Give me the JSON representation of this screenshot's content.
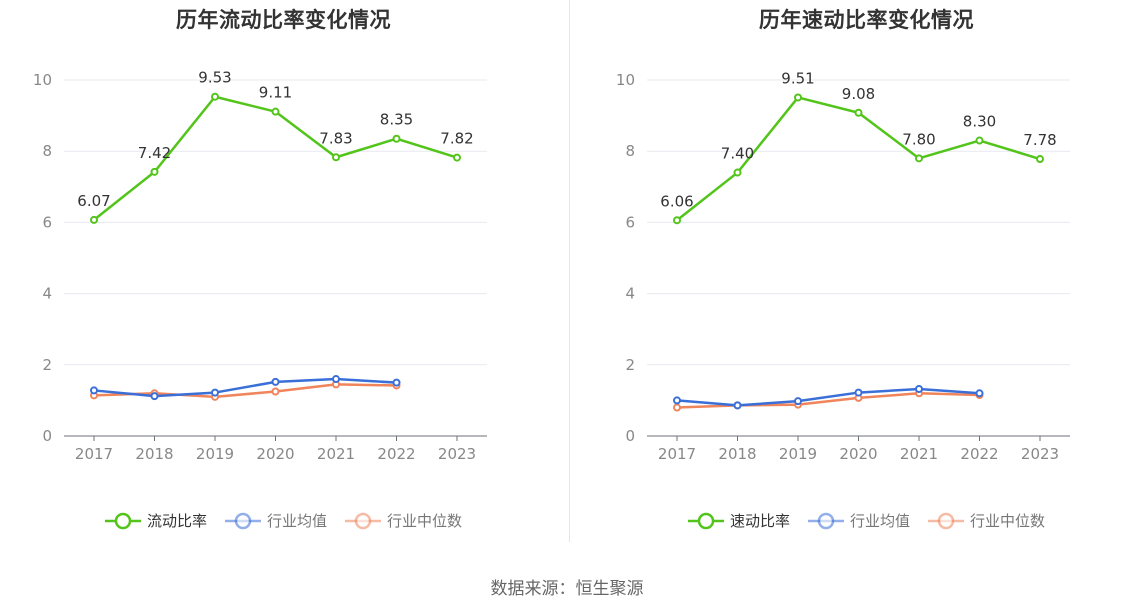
{
  "source": "数据来源：恒生聚源",
  "chart_data": [
    {
      "type": "line",
      "title": "历年流动比率变化情况",
      "categories": [
        "2017",
        "2018",
        "2019",
        "2020",
        "2021",
        "2022",
        "2023"
      ],
      "ylim": [
        0,
        10
      ],
      "yticks": [
        0,
        2,
        4,
        6,
        8,
        10
      ],
      "grid": true,
      "legend_position": "bottom",
      "series": [
        {
          "name": "流动比率",
          "color": "#52c41a",
          "labeled": true,
          "values": [
            6.07,
            7.42,
            9.53,
            9.11,
            7.83,
            8.35,
            7.82
          ]
        },
        {
          "name": "行业均值",
          "color": "#3a6fd8",
          "labeled": false,
          "values": [
            1.28,
            1.12,
            1.22,
            1.52,
            1.6,
            1.5,
            null
          ]
        },
        {
          "name": "行业中位数",
          "color": "#f0845a",
          "labeled": false,
          "values": [
            1.14,
            1.2,
            1.1,
            1.25,
            1.45,
            1.42,
            null
          ]
        }
      ]
    },
    {
      "type": "line",
      "title": "历年速动比率变化情况",
      "categories": [
        "2017",
        "2018",
        "2019",
        "2020",
        "2021",
        "2022",
        "2023"
      ],
      "ylim": [
        0,
        10
      ],
      "yticks": [
        0,
        2,
        4,
        6,
        8,
        10
      ],
      "grid": true,
      "legend_position": "bottom",
      "series": [
        {
          "name": "速动比率",
          "color": "#52c41a",
          "labeled": true,
          "values": [
            6.06,
            7.4,
            9.51,
            9.08,
            7.8,
            8.3,
            7.78
          ]
        },
        {
          "name": "行业均值",
          "color": "#3a6fd8",
          "labeled": false,
          "values": [
            1.0,
            0.86,
            0.98,
            1.22,
            1.32,
            1.2,
            null
          ]
        },
        {
          "name": "行业中位数",
          "color": "#f0845a",
          "labeled": false,
          "values": [
            0.8,
            0.86,
            0.88,
            1.07,
            1.2,
            1.15,
            null
          ]
        }
      ]
    }
  ]
}
